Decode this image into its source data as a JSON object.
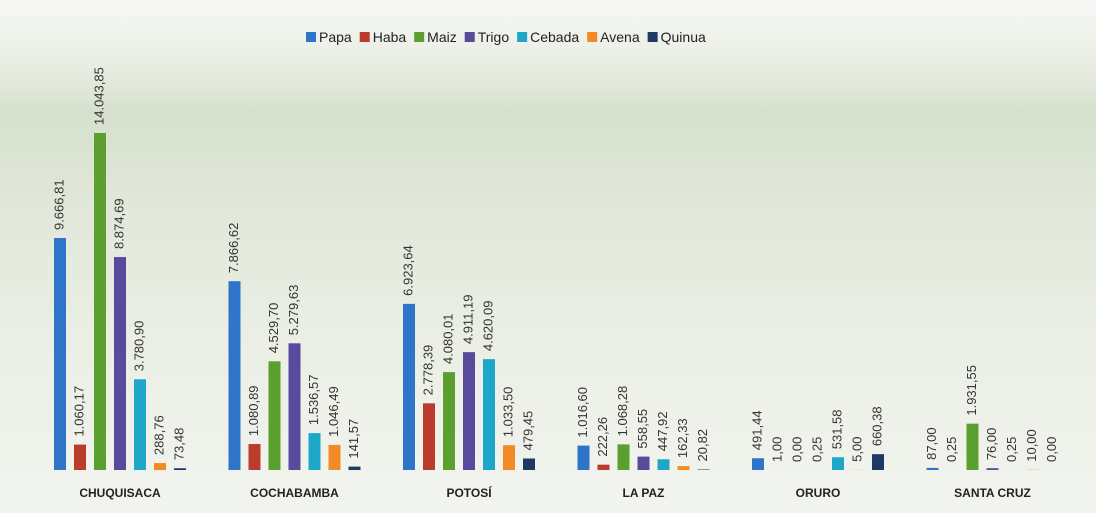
{
  "chart_data": {
    "type": "bar",
    "categories": [
      "CHUQUISACA",
      "COCHABAMBA",
      "POTOSÍ",
      "LA PAZ",
      "ORURO",
      "SANTA CRUZ"
    ],
    "series": [
      {
        "name": "Papa",
        "color": "#2e74c8",
        "values": [
          9666.81,
          7866.62,
          6923.64,
          1016.6,
          491.44,
          87.0
        ],
        "value_labels": [
          "9.666,81",
          "7.866,62",
          "6.923,64",
          "1.016,60",
          "491,44",
          "87,00"
        ]
      },
      {
        "name": "Haba",
        "color": "#bb3b2c",
        "values": [
          1060.17,
          1080.89,
          2778.39,
          222.26,
          1.0,
          0.25
        ],
        "value_labels": [
          "1.060,17",
          "1.080,89",
          "2.778,39",
          "222,26",
          "1,00",
          "0,25"
        ]
      },
      {
        "name": "Maiz",
        "color": "#5b9f2e",
        "values": [
          14043.85,
          4529.7,
          4080.01,
          1068.28,
          0.0,
          1931.55
        ],
        "value_labels": [
          "14.043,85",
          "4.529,70",
          "4.080,01",
          "1.068,28",
          "0,00",
          "1.931,55"
        ]
      },
      {
        "name": "Trigo",
        "color": "#5a4a9c",
        "values": [
          8874.69,
          5279.63,
          4911.19,
          558.55,
          0.25,
          76.0
        ],
        "value_labels": [
          "8.874,69",
          "5.279,63",
          "4.911,19",
          "558,55",
          "0,25",
          "76,00"
        ]
      },
      {
        "name": "Cebada",
        "color": "#1ea7c8",
        "values": [
          3780.9,
          1536.57,
          4620.09,
          447.92,
          531.58,
          0.25
        ],
        "value_labels": [
          "3.780,90",
          "1.536,57",
          "4.620,09",
          "447,92",
          "531,58",
          "0,25"
        ]
      },
      {
        "name": "Avena",
        "color": "#f28a26",
        "values": [
          288.76,
          1046.49,
          1033.5,
          162.33,
          5.0,
          10.0
        ],
        "value_labels": [
          "288,76",
          "1.046,49",
          "1.033,50",
          "162,33",
          "5,00",
          "10,00"
        ]
      },
      {
        "name": "Quinua",
        "color": "#1e3a64",
        "values": [
          73.48,
          141.57,
          479.45,
          20.82,
          660.38,
          0.0
        ],
        "value_labels": [
          "73,48",
          "141,57",
          "479,45",
          "20,82",
          "660,38",
          "0,00"
        ]
      }
    ]
  }
}
